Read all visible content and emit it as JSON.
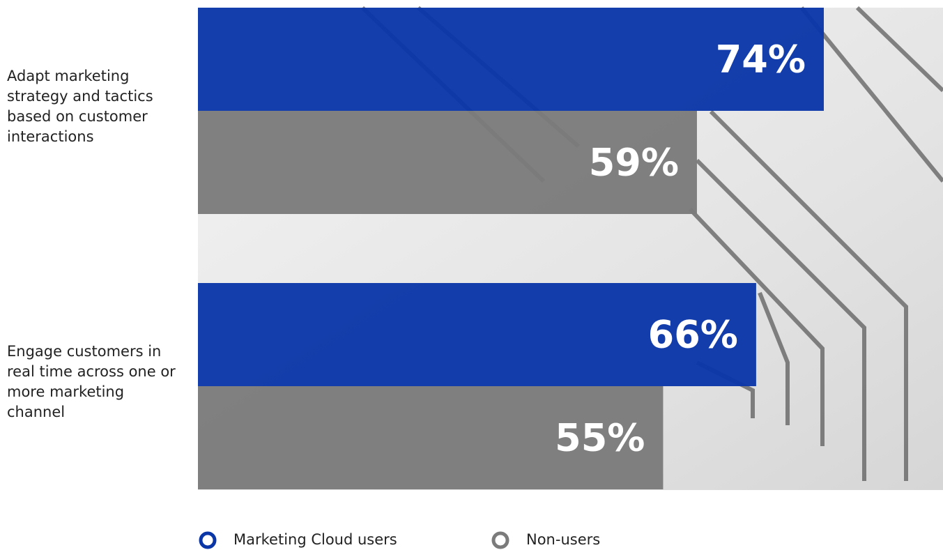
{
  "chart_data": {
    "type": "bar",
    "orientation": "horizontal",
    "categories": [
      "Adapt marketing strategy and tactics based on customer interactions",
      "Engage customers in real time across one or more marketing channel"
    ],
    "series": [
      {
        "name": "Marketing Cloud users",
        "color": "#0a36a8",
        "values": [
          74,
          66
        ],
        "value_labels": [
          "74%",
          "66%"
        ]
      },
      {
        "name": "Non-users",
        "color": "#7b7b7b",
        "values": [
          59,
          55
        ],
        "value_labels": [
          "59%",
          "55%"
        ]
      }
    ]
  }
}
